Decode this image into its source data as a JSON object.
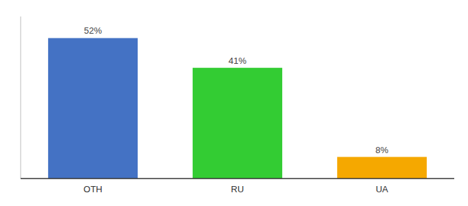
{
  "chart_data": {
    "type": "bar",
    "categories": [
      "OTH",
      "RU",
      "UA"
    ],
    "values": [
      52,
      41,
      8
    ],
    "value_labels": [
      "52%",
      "41%",
      "8%"
    ],
    "colors": [
      "#4472c4",
      "#33cc33",
      "#f5a800"
    ],
    "ylim": [
      0,
      60
    ],
    "yticks": [],
    "grid": false,
    "data_labels": true,
    "tick_labels": "x"
  }
}
